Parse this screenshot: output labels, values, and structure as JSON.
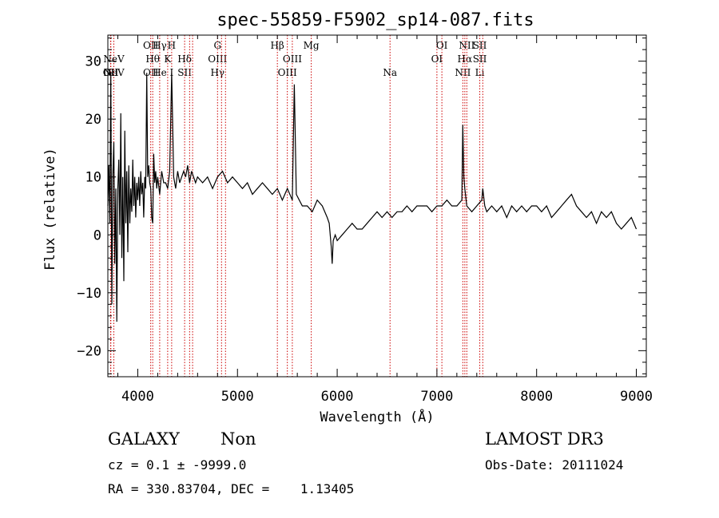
{
  "chart_data": {
    "type": "line",
    "title": "spec-55859-F5902_sp14-087.fits",
    "xlabel": "Wavelength (Å)",
    "ylabel": "Flux (relative)",
    "xlim": [
      3700,
      9100
    ],
    "ylim": [
      -24.5,
      34.5
    ],
    "xticks": [
      4000,
      5000,
      6000,
      7000,
      8000,
      9000
    ],
    "yticks": [
      -20,
      -10,
      0,
      10,
      20,
      30
    ],
    "grid": false,
    "series": [
      {
        "values": [
          [
            3700,
            5
          ],
          [
            3710,
            12
          ],
          [
            3720,
            2
          ],
          [
            3730,
            28
          ],
          [
            3740,
            -12
          ],
          [
            3750,
            10
          ],
          [
            3760,
            16
          ],
          [
            3770,
            -5
          ],
          [
            3780,
            8
          ],
          [
            3790,
            -15
          ],
          [
            3800,
            8
          ],
          [
            3810,
            13
          ],
          [
            3820,
            0
          ],
          [
            3830,
            21
          ],
          [
            3840,
            -4
          ],
          [
            3850,
            10
          ],
          [
            3860,
            -8
          ],
          [
            3870,
            18
          ],
          [
            3880,
            2
          ],
          [
            3890,
            11
          ],
          [
            3900,
            -3
          ],
          [
            3910,
            12
          ],
          [
            3920,
            2
          ],
          [
            3930,
            8
          ],
          [
            3940,
            4
          ],
          [
            3950,
            13
          ],
          [
            3960,
            5
          ],
          [
            3970,
            10
          ],
          [
            3980,
            3
          ],
          [
            3990,
            9
          ],
          [
            4000,
            6
          ],
          [
            4010,
            10
          ],
          [
            4020,
            5
          ],
          [
            4030,
            11
          ],
          [
            4040,
            7
          ],
          [
            4050,
            9
          ],
          [
            4060,
            3
          ],
          [
            4070,
            10
          ],
          [
            4080,
            8
          ],
          [
            4090,
            28
          ],
          [
            4100,
            10
          ],
          [
            4110,
            12
          ],
          [
            4120,
            9
          ],
          [
            4130,
            8
          ],
          [
            4140,
            3
          ],
          [
            4150,
            2
          ],
          [
            4160,
            14
          ],
          [
            4170,
            9
          ],
          [
            4180,
            11
          ],
          [
            4190,
            8
          ],
          [
            4200,
            10
          ],
          [
            4220,
            7
          ],
          [
            4240,
            11
          ],
          [
            4260,
            9
          ],
          [
            4280,
            9
          ],
          [
            4300,
            8
          ],
          [
            4320,
            11
          ],
          [
            4340,
            28
          ],
          [
            4360,
            10
          ],
          [
            4380,
            8
          ],
          [
            4400,
            11
          ],
          [
            4420,
            9
          ],
          [
            4440,
            10
          ],
          [
            4460,
            11
          ],
          [
            4480,
            10
          ],
          [
            4500,
            12
          ],
          [
            4520,
            9
          ],
          [
            4540,
            11
          ],
          [
            4560,
            10
          ],
          [
            4580,
            9
          ],
          [
            4600,
            10
          ],
          [
            4650,
            9
          ],
          [
            4700,
            10
          ],
          [
            4750,
            8
          ],
          [
            4800,
            10
          ],
          [
            4850,
            11
          ],
          [
            4900,
            9
          ],
          [
            4950,
            10
          ],
          [
            5000,
            9
          ],
          [
            5050,
            8
          ],
          [
            5100,
            9
          ],
          [
            5150,
            7
          ],
          [
            5200,
            8
          ],
          [
            5250,
            9
          ],
          [
            5300,
            8
          ],
          [
            5350,
            7
          ],
          [
            5400,
            8
          ],
          [
            5450,
            6
          ],
          [
            5500,
            8
          ],
          [
            5550,
            6
          ],
          [
            5570,
            26
          ],
          [
            5590,
            7
          ],
          [
            5620,
            6
          ],
          [
            5650,
            5
          ],
          [
            5700,
            5
          ],
          [
            5750,
            4
          ],
          [
            5800,
            6
          ],
          [
            5850,
            5
          ],
          [
            5900,
            3
          ],
          [
            5920,
            2
          ],
          [
            5940,
            -2
          ],
          [
            5950,
            -5
          ],
          [
            5960,
            -1
          ],
          [
            5980,
            0
          ],
          [
            6000,
            -1
          ],
          [
            6050,
            0
          ],
          [
            6100,
            1
          ],
          [
            6150,
            2
          ],
          [
            6200,
            1
          ],
          [
            6250,
            1
          ],
          [
            6300,
            2
          ],
          [
            6350,
            3
          ],
          [
            6400,
            4
          ],
          [
            6450,
            3
          ],
          [
            6500,
            4
          ],
          [
            6550,
            3
          ],
          [
            6600,
            4
          ],
          [
            6650,
            4
          ],
          [
            6700,
            5
          ],
          [
            6750,
            4
          ],
          [
            6800,
            5
          ],
          [
            6850,
            5
          ],
          [
            6900,
            5
          ],
          [
            6950,
            4
          ],
          [
            7000,
            5
          ],
          [
            7050,
            5
          ],
          [
            7100,
            6
          ],
          [
            7150,
            5
          ],
          [
            7200,
            5
          ],
          [
            7250,
            6
          ],
          [
            7260,
            19
          ],
          [
            7270,
            10
          ],
          [
            7280,
            8
          ],
          [
            7300,
            5
          ],
          [
            7350,
            4
          ],
          [
            7400,
            5
          ],
          [
            7450,
            6
          ],
          [
            7460,
            8
          ],
          [
            7480,
            5
          ],
          [
            7500,
            4
          ],
          [
            7550,
            5
          ],
          [
            7600,
            4
          ],
          [
            7650,
            5
          ],
          [
            7700,
            3
          ],
          [
            7750,
            5
          ],
          [
            7800,
            4
          ],
          [
            7850,
            5
          ],
          [
            7900,
            4
          ],
          [
            7950,
            5
          ],
          [
            8000,
            5
          ],
          [
            8050,
            4
          ],
          [
            8100,
            5
          ],
          [
            8150,
            3
          ],
          [
            8200,
            4
          ],
          [
            8250,
            5
          ],
          [
            8300,
            6
          ],
          [
            8350,
            7
          ],
          [
            8400,
            5
          ],
          [
            8450,
            4
          ],
          [
            8500,
            3
          ],
          [
            8550,
            4
          ],
          [
            8600,
            2
          ],
          [
            8650,
            4
          ],
          [
            8700,
            3
          ],
          [
            8750,
            4
          ],
          [
            8800,
            2
          ],
          [
            8850,
            1
          ],
          [
            8900,
            2
          ],
          [
            8950,
            3
          ],
          [
            9000,
            1
          ]
        ]
      }
    ],
    "line_color": "#000000",
    "marker_color": "#cc0000",
    "spectral_lines": [
      {
        "wl": 3727,
        "labels": [
          {
            "text": "OII",
            "row": 2
          }
        ]
      },
      {
        "wl": 3730,
        "labels": [
          {
            "text": "OII",
            "row": 2
          }
        ]
      },
      {
        "wl": 3760,
        "labels": [
          {
            "text": "NeV",
            "row": 1
          },
          {
            "text": "NeV",
            "row": 2
          }
        ]
      },
      {
        "wl": 4130,
        "labels": [
          {
            "text": "OII",
            "row": 0
          },
          {
            "text": "OII",
            "row": 2
          }
        ]
      },
      {
        "wl": 4150,
        "labels": [
          {
            "text": "Hθ",
            "row": 1
          }
        ]
      },
      {
        "wl": 4220,
        "labels": [
          {
            "text": "Hγ",
            "row": 0
          },
          {
            "text": "He",
            "row": 2
          }
        ]
      },
      {
        "wl": 4300,
        "labels": [
          {
            "text": "K",
            "row": 1
          }
        ]
      },
      {
        "wl": 4340,
        "labels": [
          {
            "text": "H",
            "row": 0
          },
          {
            "text": "I",
            "row": 2
          }
        ]
      },
      {
        "wl": 4470,
        "labels": [
          {
            "text": "Hδ",
            "row": 1
          },
          {
            "text": "SII",
            "row": 2
          }
        ]
      },
      {
        "wl": 4520,
        "labels": []
      },
      {
        "wl": 4550,
        "labels": []
      },
      {
        "wl": 4800,
        "labels": [
          {
            "text": "G",
            "row": 0
          },
          {
            "text": "OIII",
            "row": 1
          },
          {
            "text": "Hγ",
            "row": 2
          }
        ]
      },
      {
        "wl": 4840,
        "labels": []
      },
      {
        "wl": 4880,
        "labels": []
      },
      {
        "wl": 5400,
        "labels": [
          {
            "text": "Hβ",
            "row": 0
          }
        ]
      },
      {
        "wl": 5500,
        "labels": [
          {
            "text": "OIII",
            "row": 2
          }
        ]
      },
      {
        "wl": 5550,
        "labels": [
          {
            "text": "OIII",
            "row": 1
          }
        ]
      },
      {
        "wl": 5740,
        "labels": [
          {
            "text": "Mg",
            "row": 0
          }
        ]
      },
      {
        "wl": 6530,
        "labels": [
          {
            "text": "Na",
            "row": 2
          }
        ]
      },
      {
        "wl": 7000,
        "labels": [
          {
            "text": "OI",
            "row": 1
          }
        ]
      },
      {
        "wl": 7050,
        "labels": [
          {
            "text": "OI",
            "row": 0
          }
        ]
      },
      {
        "wl": 7260,
        "labels": [
          {
            "text": "NII",
            "row": 2
          }
        ]
      },
      {
        "wl": 7280,
        "labels": [
          {
            "text": "Hα",
            "row": 1
          }
        ]
      },
      {
        "wl": 7300,
        "labels": [
          {
            "text": "NII",
            "row": 0
          }
        ]
      },
      {
        "wl": 7430,
        "labels": [
          {
            "text": "SII",
            "row": 0
          },
          {
            "text": "SII",
            "row": 1
          },
          {
            "text": "Li",
            "row": 2
          }
        ]
      },
      {
        "wl": 7460,
        "labels": []
      }
    ]
  },
  "info": {
    "object_class": "GALAXY",
    "subclass": "Non",
    "survey": "LAMOST DR3",
    "cz": "cz = 0.1 ± -9999.0",
    "obs_date": "Obs-Date: 20111024",
    "radec": "RA = 330.83704, DEC =    1.13405"
  }
}
